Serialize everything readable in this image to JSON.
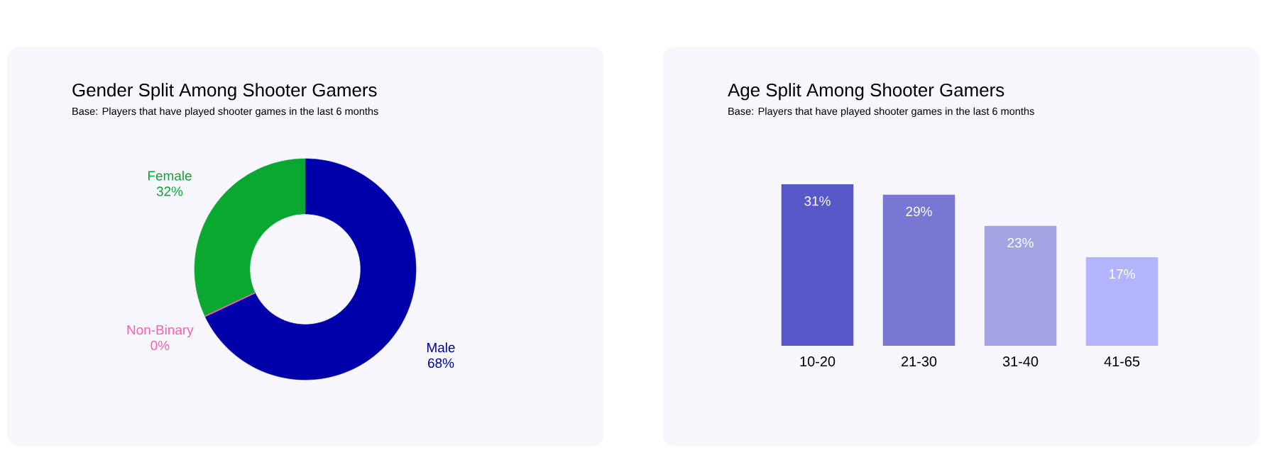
{
  "chart_data": [
    {
      "type": "donut",
      "title": "Gender Split Among Shooter Gamers",
      "subtitle": "Base: Players that have played shooter games in the last 6 months",
      "categories": [
        "Male",
        "Non-Binary",
        "Female"
      ],
      "values": [
        68,
        0,
        32
      ],
      "colors": [
        "#0000aa",
        "#ff5cb0",
        "#0aa830"
      ],
      "value_labels": [
        "68%",
        "0%",
        "32%"
      ]
    },
    {
      "type": "bar",
      "title": "Age Split Among Shooter Gamers",
      "subtitle": "Base: Players that have played shooter games in the last 6 months",
      "categories": [
        "10-20",
        "21-30",
        "31-40",
        "41-65"
      ],
      "values": [
        31,
        29,
        23,
        17
      ],
      "colors": [
        "#5858c8",
        "#7878d4",
        "#a4a4e4",
        "#b4b4fc"
      ],
      "value_labels": [
        "31%",
        "29%",
        "23%",
        "17%"
      ]
    }
  ]
}
